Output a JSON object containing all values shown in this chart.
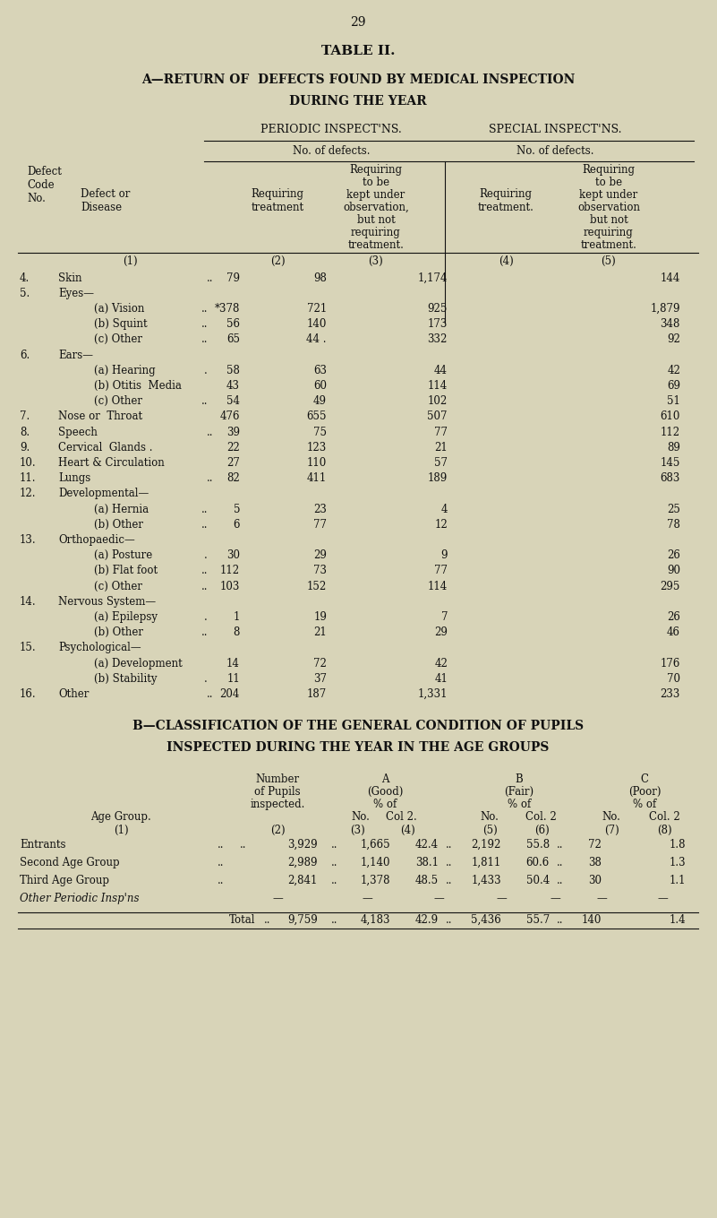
{
  "bg_color": "#d8d4b8",
  "page_number": "29",
  "title_a": "TABLE II.",
  "subtitle_a1": "A—RETURN OF  DEFECTS FOUND BY MEDICAL INSPECTION",
  "subtitle_a2": "DURING THE YEAR",
  "periodic_label": "PERIODIC INSPECT'NS.",
  "special_label": "SPECIAL INSPECT'NS.",
  "no_of_defects": "No. of defects.",
  "rows": [
    {
      "code": "4.",
      "disease": "Skin",
      "dots": "..",
      "c2": "79",
      "c3": "98",
      "c4": "1,174",
      "c5": "144"
    },
    {
      "code": "5.",
      "disease": "Eyes—",
      "dots": "",
      "c2": "",
      "c3": "",
      "c4": "",
      "c5": ""
    },
    {
      "code": "",
      "disease": "(a) Vision",
      "dots": "..",
      "c2": "*378",
      "c3": "721",
      "c4": "925",
      "c5": "1,879"
    },
    {
      "code": "",
      "disease": "(b) Squint",
      "dots": "..",
      "c2": "56",
      "c3": "140",
      "c4": "173",
      "c5": "348"
    },
    {
      "code": "",
      "disease": "(c) Other",
      "dots": "..",
      "c2": "65",
      "c3": "44 .",
      "c4": "332",
      "c5": "92"
    },
    {
      "code": "6.",
      "disease": "Ears—",
      "dots": "",
      "c2": "",
      "c3": "",
      "c4": "",
      "c5": ""
    },
    {
      "code": "",
      "disease": "(a) Hearing",
      "dots": ".",
      "c2": "58",
      "c3": "63",
      "c4": "44",
      "c5": "42"
    },
    {
      "code": "",
      "disease": "(b) Otitis  Media",
      "dots": "",
      "c2": "43",
      "c3": "60",
      "c4": "114",
      "c5": "69"
    },
    {
      "code": "",
      "disease": "(c) Other",
      "dots": "..",
      "c2": "54",
      "c3": "49",
      "c4": "102",
      "c5": "51"
    },
    {
      "code": "7.",
      "disease": "Nose or  Throat",
      "dots": "",
      "c2": "476",
      "c3": "655",
      "c4": "507",
      "c5": "610"
    },
    {
      "code": "8.",
      "disease": "Speech",
      "dots": "..",
      "c2": "39",
      "c3": "75",
      "c4": "77",
      "c5": "112"
    },
    {
      "code": "9.",
      "disease": "Cervical  Glands .",
      "dots": "",
      "c2": "22",
      "c3": "123",
      "c4": "21",
      "c5": "89"
    },
    {
      "code": "10.",
      "disease": "Heart & Circulation",
      "dots": "",
      "c2": "27",
      "c3": "110",
      "c4": "57",
      "c5": "145"
    },
    {
      "code": "11.",
      "disease": "Lungs",
      "dots": "..",
      "c2": "82",
      "c3": "411",
      "c4": "189",
      "c5": "683"
    },
    {
      "code": "12.",
      "disease": "Developmental—",
      "dots": "",
      "c2": "",
      "c3": "",
      "c4": "",
      "c5": ""
    },
    {
      "code": "",
      "disease": "(a) Hernia",
      "dots": "..",
      "c2": "5",
      "c3": "23",
      "c4": "4",
      "c5": "25"
    },
    {
      "code": "",
      "disease": "(b) Other",
      "dots": "..",
      "c2": "6",
      "c3": "77",
      "c4": "12",
      "c5": "78"
    },
    {
      "code": "13.",
      "disease": "Orthopaedic—",
      "dots": "",
      "c2": "",
      "c3": "",
      "c4": "",
      "c5": ""
    },
    {
      "code": "",
      "disease": "(a) Posture",
      "dots": ".",
      "c2": "30",
      "c3": "29",
      "c4": "9",
      "c5": "26"
    },
    {
      "code": "",
      "disease": "(b) Flat foot",
      "dots": "..",
      "c2": "112",
      "c3": "73",
      "c4": "77",
      "c5": "90"
    },
    {
      "code": "",
      "disease": "(c) Other",
      "dots": "..",
      "c2": "103",
      "c3": "152",
      "c4": "114",
      "c5": "295"
    },
    {
      "code": "14.",
      "disease": "Nervous System—",
      "dots": "",
      "c2": "",
      "c3": "",
      "c4": "",
      "c5": ""
    },
    {
      "code": "",
      "disease": "(a) Epilepsy",
      "dots": ".",
      "c2": "1",
      "c3": "19",
      "c4": "7",
      "c5": "26"
    },
    {
      "code": "",
      "disease": "(b) Other",
      "dots": "..",
      "c2": "8",
      "c3": "21",
      "c4": "29",
      "c5": "46"
    },
    {
      "code": "15.",
      "disease": "Psychological—",
      "dots": "",
      "c2": "",
      "c3": "",
      "c4": "",
      "c5": ""
    },
    {
      "code": "",
      "disease": "(a) Development",
      "dots": "",
      "c2": "14",
      "c3": "72",
      "c4": "42",
      "c5": "176"
    },
    {
      "code": "",
      "disease": "(b) Stability",
      "dots": ".",
      "c2": "11",
      "c3": "37",
      "c4": "41",
      "c5": "70"
    },
    {
      "code": "16.",
      "disease": "Other",
      "dots": "..",
      "c2": "204",
      "c3": "187",
      "c4": "1,331",
      "c5": "233"
    }
  ],
  "section_b_title1": "B—CLASSIFICATION OF THE GENERAL CONDITION OF PUPILS",
  "section_b_title2": "INSPECTED DURING THE YEAR IN THE AGE GROUPS",
  "b_rows": [
    {
      "group": "Entrants",
      "dots": "..",
      "dots2": "..",
      "n": "3,929",
      "a_no": "1,665",
      "a_pct": "42.4",
      "b_no": "2,192",
      "b_pct": "55.8",
      "c_no": "72",
      "c_pct": "1.8"
    },
    {
      "group": "Second Age Group",
      "dots": "..",
      "dots2": "",
      "n": "2,989",
      "a_no": "1,140",
      "a_pct": "38.1",
      "b_no": "1,811",
      "b_pct": "60.6",
      "c_no": "38",
      "c_pct": "1.3"
    },
    {
      "group": "Third Age Group",
      "dots": "..",
      "dots2": "",
      "n": "2,841",
      "a_no": "1,378",
      "a_pct": "48.5",
      "b_no": "1,433",
      "b_pct": "50.4",
      "c_no": "30",
      "c_pct": "1.1"
    },
    {
      "group": "Other Periodic Insp'ns",
      "dots": "",
      "dots2": "",
      "n": "—",
      "a_no": "—",
      "a_pct": "—",
      "b_no": "—",
      "b_pct": "—",
      "c_no": "—",
      "c_pct": "—"
    }
  ],
  "b_total": {
    "n": "9,759",
    "a_no": "4,183",
    "a_pct": "42.9",
    "b_no": "5,436",
    "b_pct": "55.7",
    "c_no": "140",
    "c_pct": "1.4"
  }
}
